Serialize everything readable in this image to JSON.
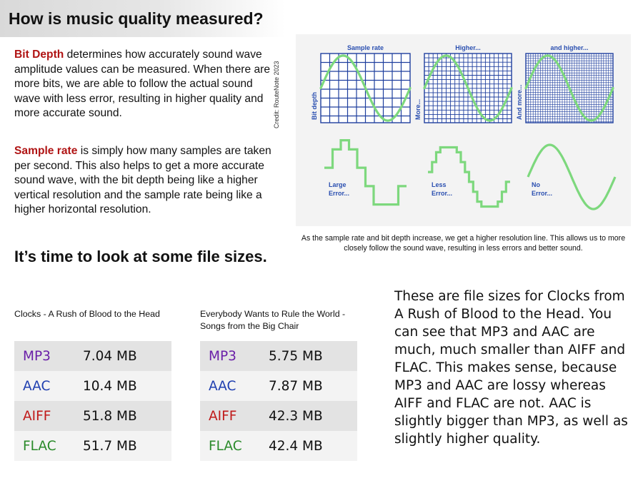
{
  "title": "How is music quality measured?",
  "bit_depth": {
    "term": "Bit Depth",
    "text": " determines how accurately sound wave amplitude values can be measured. When there are more bits, we are able to follow the actual sound wave with less error, resulting in higher quality and more accurate sound."
  },
  "sample_rate": {
    "term": "Sample rate",
    "text": " is simply how many samples are taken per second. This also helps to get a more accurate sound wave, with the bit depth being like a higher vertical resolution and the sample rate being like a higher horizontal resolution."
  },
  "figure": {
    "labels_top": [
      "Sample rate",
      "Higher...",
      "and higher..."
    ],
    "labels_side": [
      "Bit depth",
      "More...",
      "And more..."
    ],
    "error_labels": [
      {
        "line1": "Large",
        "line2": "Error..."
      },
      {
        "line1": "Less",
        "line2": "Error..."
      },
      {
        "line1": "No",
        "line2": "Error..."
      }
    ],
    "credit": "Credit: RouteNote 2023",
    "caption": "As the sample rate and bit depth increase, we get a higher resolution line. This allows us to more closely follow the sound wave, resulting in less errors and better sound.",
    "colors": {
      "grid": "#1f3f9e",
      "wave": "#7dd87d",
      "label": "#2a4fb0"
    }
  },
  "section_heading": "It’s time to look at some file sizes.",
  "albums": [
    {
      "title": "Clocks - A Rush of Blood to the Head",
      "rows": [
        {
          "format": "MP3",
          "size": "7.04 MB",
          "color": "#6a1fa8"
        },
        {
          "format": "AAC",
          "size": "10.4 MB",
          "color": "#1f3fb0"
        },
        {
          "format": "AIFF",
          "size": "51.8 MB",
          "color": "#c01a1a"
        },
        {
          "format": "FLAC",
          "size": "51.7 MB",
          "color": "#2a8a2a"
        }
      ]
    },
    {
      "title": "Everybody Wants to Rule the World - Songs from the Big Chair",
      "rows": [
        {
          "format": "MP3",
          "size": "5.75 MB",
          "color": "#6a1fa8"
        },
        {
          "format": "AAC",
          "size": "7.87 MB",
          "color": "#1f3fb0"
        },
        {
          "format": "AIFF",
          "size": "42.3 MB",
          "color": "#c01a1a"
        },
        {
          "format": "FLAC",
          "size": "42.4 MB",
          "color": "#2a8a2a"
        }
      ]
    }
  ],
  "summary": "These are file sizes for Clocks from A Rush of Blood to the Head. You can see that MP3 and AAC are much, much smaller than AIFF and FLAC. This makes sense, because MP3 and AAC are lossy whereas AIFF and FLAC are not. AAC is slightly bigger than MP3, as well as slightly higher quality."
}
